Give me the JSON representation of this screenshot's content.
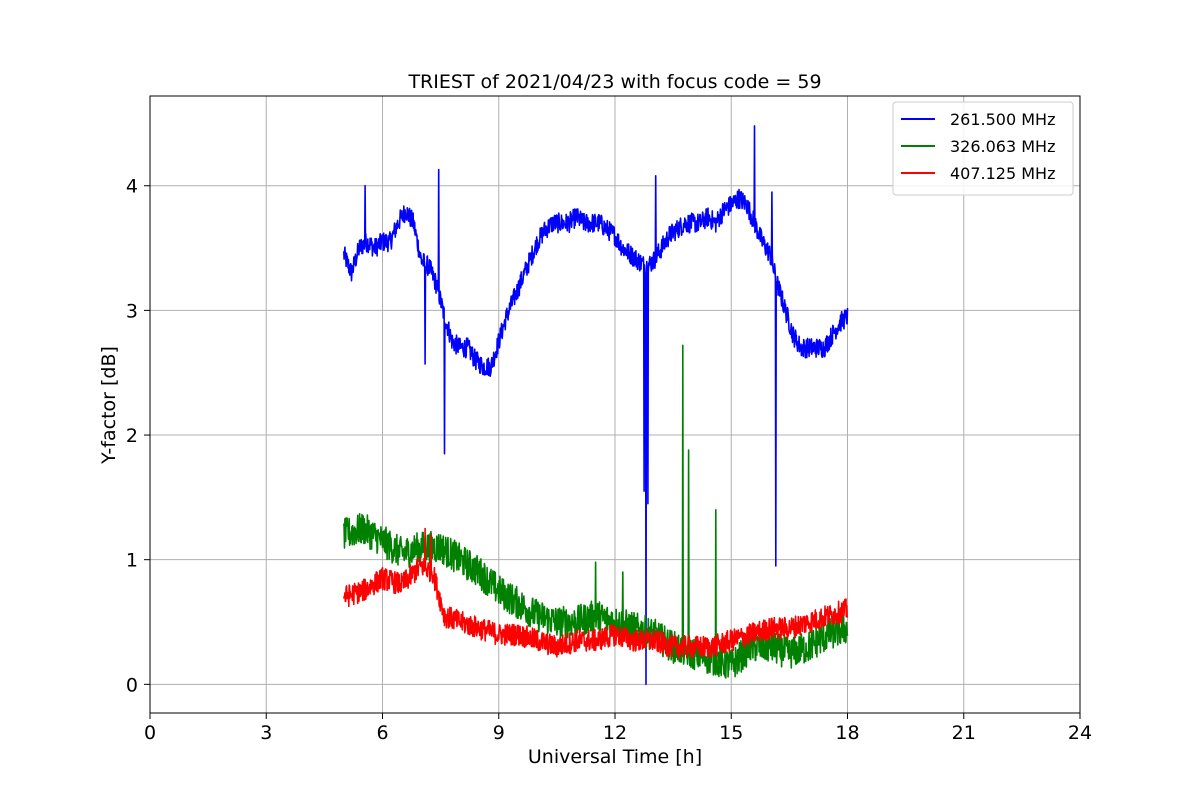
{
  "chart_data": {
    "type": "line",
    "title": "TRIEST of 2021/04/23 with focus code = 59",
    "xlabel": "Universal Time [h]",
    "ylabel": "Y-factor [dB]",
    "xlim": [
      0,
      24
    ],
    "ylim": [
      -0.23,
      4.72
    ],
    "xticks": [
      0,
      3,
      6,
      9,
      12,
      15,
      18,
      21,
      24
    ],
    "yticks": [
      0,
      1,
      2,
      3,
      4
    ],
    "grid": true,
    "legend_position": "upper-right",
    "series": [
      {
        "name": "261.500 MHz",
        "color": "#0000ff",
        "noise": 0.08,
        "x": [
          5.0,
          5.2,
          5.4,
          5.6,
          5.8,
          6.0,
          6.2,
          6.4,
          6.6,
          6.8,
          7.0,
          7.2,
          7.4,
          7.6,
          7.8,
          8.0,
          8.2,
          8.4,
          8.6,
          8.8,
          9.0,
          9.2,
          9.4,
          9.6,
          9.8,
          10.0,
          10.2,
          10.4,
          10.6,
          10.8,
          11.0,
          11.2,
          11.4,
          11.6,
          11.8,
          12.0,
          12.2,
          12.4,
          12.6,
          12.8,
          13.0,
          13.2,
          13.4,
          13.6,
          13.8,
          14.0,
          14.2,
          14.4,
          14.6,
          14.8,
          15.0,
          15.2,
          15.4,
          15.6,
          15.8,
          16.0,
          16.2,
          16.4,
          16.6,
          16.8,
          17.0,
          17.2,
          17.4,
          17.6,
          17.8,
          18.0
        ],
        "y": [
          3.45,
          3.3,
          3.5,
          3.55,
          3.5,
          3.55,
          3.55,
          3.7,
          3.8,
          3.7,
          3.4,
          3.35,
          3.2,
          2.95,
          2.75,
          2.7,
          2.7,
          2.6,
          2.55,
          2.55,
          2.75,
          2.95,
          3.1,
          3.25,
          3.4,
          3.55,
          3.65,
          3.7,
          3.7,
          3.7,
          3.75,
          3.7,
          3.7,
          3.7,
          3.65,
          3.6,
          3.5,
          3.45,
          3.4,
          3.35,
          3.4,
          3.5,
          3.6,
          3.65,
          3.7,
          3.7,
          3.7,
          3.75,
          3.7,
          3.8,
          3.85,
          3.9,
          3.85,
          3.7,
          3.55,
          3.45,
          3.2,
          3.0,
          2.8,
          2.7,
          2.7,
          2.7,
          2.7,
          2.8,
          2.9,
          2.95
        ],
        "spikes": [
          [
            5.55,
            4.0
          ],
          [
            7.45,
            4.13
          ],
          [
            7.1,
            2.57
          ],
          [
            7.6,
            1.85
          ],
          [
            12.75,
            1.55
          ],
          [
            12.8,
            0.0
          ],
          [
            12.85,
            1.45
          ],
          [
            13.05,
            4.08
          ],
          [
            15.6,
            4.48
          ],
          [
            16.05,
            3.95
          ],
          [
            16.15,
            0.95
          ]
        ]
      },
      {
        "name": "326.063 MHz",
        "color": "#008000",
        "noise": 0.13,
        "x": [
          5.0,
          5.5,
          6.0,
          6.5,
          7.0,
          7.5,
          8.0,
          8.5,
          9.0,
          9.5,
          10.0,
          10.5,
          11.0,
          11.5,
          12.0,
          12.5,
          13.0,
          13.5,
          14.0,
          14.5,
          15.0,
          15.5,
          16.0,
          16.5,
          17.0,
          17.5,
          18.0
        ],
        "y": [
          1.2,
          1.25,
          1.15,
          1.05,
          1.1,
          1.1,
          1.0,
          0.9,
          0.75,
          0.65,
          0.55,
          0.5,
          0.5,
          0.55,
          0.5,
          0.45,
          0.4,
          0.3,
          0.25,
          0.2,
          0.15,
          0.3,
          0.3,
          0.25,
          0.3,
          0.4,
          0.45
        ],
        "spikes": [
          [
            11.5,
            0.98
          ],
          [
            13.75,
            2.72
          ],
          [
            13.9,
            1.88
          ],
          [
            14.6,
            1.4
          ],
          [
            12.2,
            0.9
          ]
        ]
      },
      {
        "name": "407.125 MHz",
        "color": "#ff0000",
        "noise": 0.09,
        "x": [
          5.0,
          5.5,
          6.0,
          6.5,
          7.0,
          7.3,
          7.6,
          8.0,
          8.5,
          9.0,
          9.5,
          10.0,
          10.5,
          11.0,
          11.5,
          12.0,
          12.5,
          13.0,
          13.5,
          14.0,
          14.5,
          15.0,
          15.5,
          16.0,
          16.5,
          17.0,
          17.5,
          18.0
        ],
        "y": [
          0.7,
          0.75,
          0.85,
          0.8,
          0.95,
          0.9,
          0.55,
          0.5,
          0.45,
          0.4,
          0.4,
          0.35,
          0.3,
          0.35,
          0.35,
          0.4,
          0.35,
          0.35,
          0.3,
          0.3,
          0.3,
          0.35,
          0.4,
          0.45,
          0.45,
          0.5,
          0.55,
          0.6
        ],
        "spikes": [
          [
            7.1,
            1.25
          ],
          [
            7.25,
            1.2
          ]
        ]
      }
    ]
  }
}
